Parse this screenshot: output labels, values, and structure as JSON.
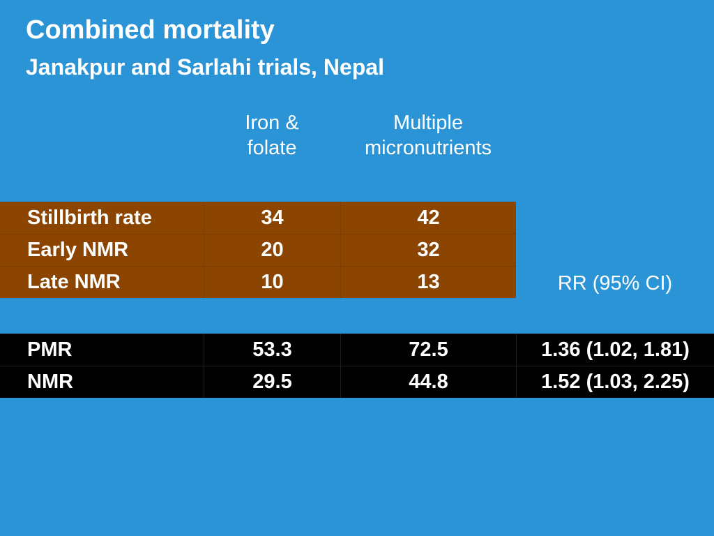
{
  "slide": {
    "title": "Combined mortality",
    "subtitle": "Janakpur and Sarlahi trials, Nepal"
  },
  "headers": {
    "iron_folate": [
      "Iron &",
      "folate"
    ],
    "multiple_micronutrients": [
      "Multiple",
      "micronutrients"
    ],
    "rr": "RR (95% CI)"
  },
  "table_rates": [
    {
      "label": "Stillbirth rate",
      "iron_folate": "34",
      "micronutrients": "42"
    },
    {
      "label": "Early NMR",
      "iron_folate": "20",
      "micronutrients": "32"
    },
    {
      "label": "Late NMR",
      "iron_folate": "10",
      "micronutrients": "13"
    }
  ],
  "table_mortality": [
    {
      "label": "PMR",
      "iron_folate": "53.3",
      "micronutrients": "72.5",
      "rr": "1.36 (1.02, 1.81)"
    },
    {
      "label": "NMR",
      "iron_folate": "29.5",
      "micronutrients": "44.8",
      "rr": "1.52 (1.03, 2.25)"
    }
  ],
  "colors": {
    "background": "#2b94d6",
    "rates_table": "#8b4500",
    "mortality_table": "#000000",
    "text": "#ffffff"
  }
}
